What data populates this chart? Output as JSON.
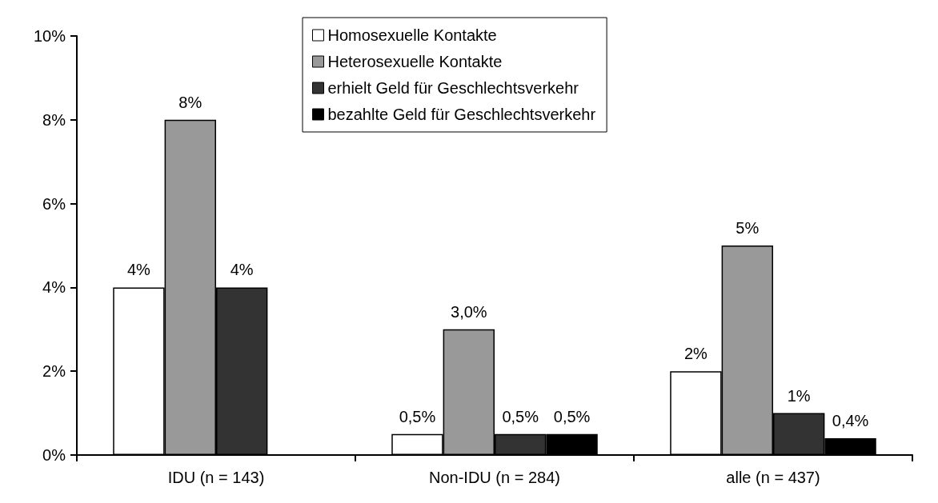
{
  "chart_data": {
    "type": "bar",
    "categories": [
      "IDU (n = 143)",
      "Non-IDU (n = 284)",
      "alle (n = 437)"
    ],
    "series": [
      {
        "name": "Homosexuelle Kontakte",
        "color": "#ffffff",
        "values": [
          4,
          0.5,
          2
        ],
        "value_labels": [
          "4%",
          "0,5%",
          "2%"
        ]
      },
      {
        "name": "Heterosexuelle Kontakte",
        "color": "#999999",
        "values": [
          8,
          3.0,
          5
        ],
        "value_labels": [
          "8%",
          "3,0%",
          "5%"
        ]
      },
      {
        "name": "erhielt Geld für Geschlechtsverkehr",
        "color": "#333333",
        "values": [
          4,
          0.5,
          1
        ],
        "value_labels": [
          "4%",
          "0,5%",
          "1%"
        ]
      },
      {
        "name": "bezahlte Geld für Geschlechtsverkehr",
        "color": "#000000",
        "values": [
          null,
          0.5,
          0.4
        ],
        "value_labels": [
          null,
          "0,5%",
          "0,4%"
        ]
      }
    ],
    "ylim": [
      0,
      10
    ],
    "yticks": [
      {
        "value": 0,
        "label": "0%"
      },
      {
        "value": 2,
        "label": "2%"
      },
      {
        "value": 4,
        "label": "4%"
      },
      {
        "value": 6,
        "label": "6%"
      },
      {
        "value": 8,
        "label": "8%"
      },
      {
        "value": 10,
        "label": "10%"
      }
    ],
    "grid": false,
    "legend": "top"
  }
}
